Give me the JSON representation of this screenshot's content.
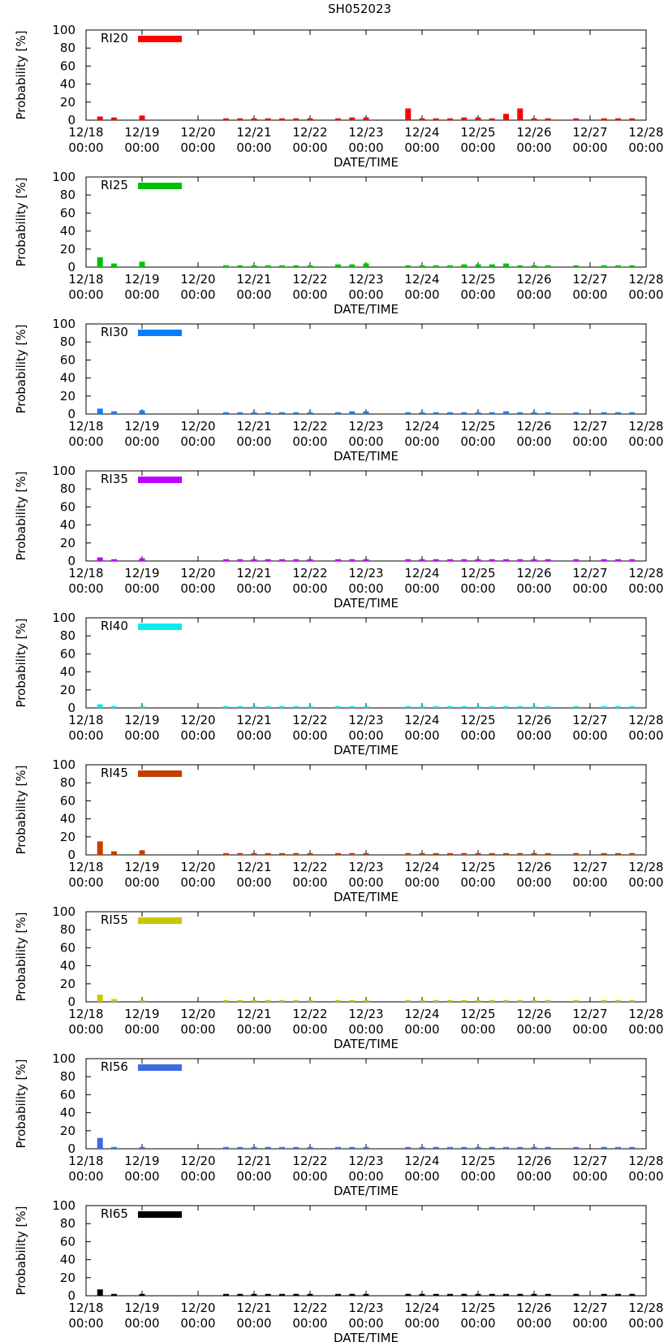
{
  "page_title": "SH052023",
  "chart_data": {
    "type": "bar",
    "title": "SH052023",
    "xlabel": "DATE/TIME",
    "ylabel": "Probability [%]",
    "ylim": [
      0,
      100
    ],
    "yticks": [
      0,
      20,
      40,
      60,
      80,
      100
    ],
    "xlim_hours": [
      0,
      240
    ],
    "x_tick_labels": [
      {
        "h": 0,
        "date": "12/18",
        "time": "00:00"
      },
      {
        "h": 24,
        "date": "12/19",
        "time": "00:00"
      },
      {
        "h": 48,
        "date": "12/20",
        "time": "00:00"
      },
      {
        "h": 72,
        "date": "12/21",
        "time": "00:00"
      },
      {
        "h": 96,
        "date": "12/22",
        "time": "00:00"
      },
      {
        "h": 120,
        "date": "12/23",
        "time": "00:00"
      },
      {
        "h": 144,
        "date": "12/24",
        "time": "00:00"
      },
      {
        "h": 168,
        "date": "12/25",
        "time": "00:00"
      },
      {
        "h": 192,
        "date": "12/26",
        "time": "00:00"
      },
      {
        "h": 216,
        "date": "12/27",
        "time": "00:00"
      },
      {
        "h": 240,
        "date": "12/28",
        "time": "00:00"
      }
    ],
    "x_hours": [
      6,
      12,
      24,
      60,
      66,
      72,
      78,
      84,
      90,
      96,
      108,
      114,
      120,
      138,
      144,
      150,
      156,
      162,
      168,
      174,
      180,
      186,
      192,
      198,
      210,
      222,
      228,
      234
    ],
    "panels": [
      {
        "name": "RI20",
        "color": "#ff0000",
        "values": [
          4,
          3,
          5,
          2,
          2,
          2,
          2,
          2,
          2,
          2,
          2,
          3,
          3,
          13,
          2,
          2,
          2,
          3,
          3,
          2,
          7,
          13,
          2,
          2,
          2,
          2,
          2,
          2
        ]
      },
      {
        "name": "RI25",
        "color": "#00c000",
        "values": [
          11,
          4,
          6,
          2,
          2,
          2,
          2,
          2,
          2,
          2,
          3,
          3,
          4,
          2,
          2,
          2,
          2,
          3,
          3,
          3,
          4,
          2,
          2,
          2,
          2,
          2,
          2,
          2
        ]
      },
      {
        "name": "RI30",
        "color": "#0080ff",
        "values": [
          6,
          3,
          4,
          2,
          2,
          2,
          2,
          2,
          2,
          2,
          2,
          3,
          3,
          2,
          2,
          2,
          2,
          2,
          2,
          2,
          3,
          2,
          2,
          2,
          2,
          2,
          2,
          2
        ]
      },
      {
        "name": "RI35",
        "color": "#c000ff",
        "values": [
          4,
          2,
          3,
          2,
          2,
          2,
          2,
          2,
          2,
          2,
          2,
          2,
          2,
          2,
          2,
          2,
          2,
          2,
          2,
          2,
          2,
          2,
          2,
          2,
          2,
          2,
          2,
          2
        ]
      },
      {
        "name": "RI40",
        "color": "#00eeee",
        "values": [
          4,
          2,
          2,
          2,
          2,
          2,
          2,
          2,
          2,
          2,
          2,
          2,
          2,
          2,
          2,
          2,
          2,
          2,
          2,
          2,
          2,
          2,
          2,
          2,
          2,
          2,
          2,
          2
        ]
      },
      {
        "name": "RI45",
        "color": "#c04000",
        "values": [
          15,
          4,
          5,
          2,
          2,
          2,
          2,
          2,
          2,
          2,
          2,
          2,
          2,
          2,
          2,
          2,
          2,
          2,
          2,
          2,
          2,
          2,
          2,
          2,
          2,
          2,
          2,
          2
        ]
      },
      {
        "name": "RI55",
        "color": "#c8c800",
        "values": [
          8,
          3,
          2,
          2,
          2,
          2,
          2,
          2,
          2,
          2,
          2,
          2,
          2,
          2,
          2,
          2,
          2,
          2,
          2,
          2,
          2,
          2,
          2,
          2,
          2,
          2,
          2,
          2
        ]
      },
      {
        "name": "RI56",
        "color": "#4169e1",
        "values": [
          12,
          2,
          2,
          2,
          2,
          2,
          2,
          2,
          2,
          2,
          2,
          2,
          2,
          2,
          2,
          2,
          2,
          2,
          2,
          2,
          2,
          2,
          2,
          2,
          2,
          2,
          2,
          2
        ]
      },
      {
        "name": "RI65",
        "color": "#000000",
        "values": [
          7,
          2,
          2,
          2,
          2,
          2,
          2,
          2,
          2,
          2,
          2,
          2,
          2,
          2,
          2,
          2,
          2,
          2,
          2,
          2,
          2,
          2,
          2,
          2,
          2,
          2,
          2,
          2
        ]
      }
    ]
  }
}
